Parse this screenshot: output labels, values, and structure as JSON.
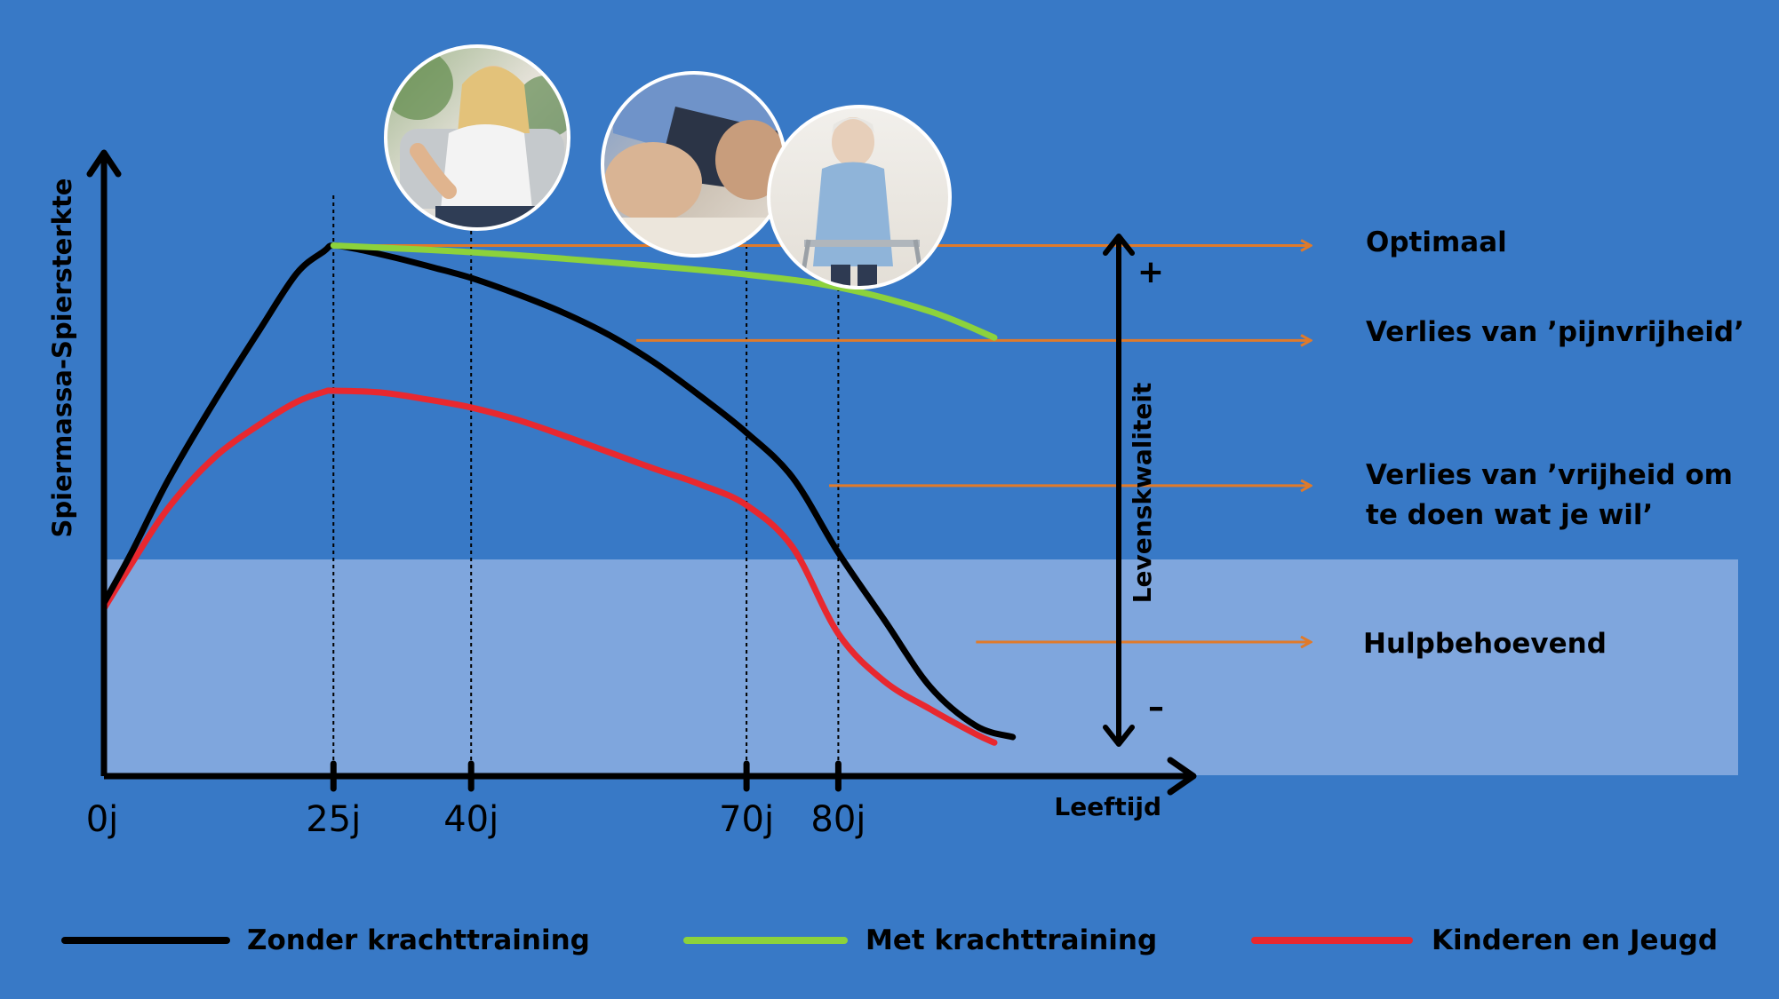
{
  "colors": {
    "background": "#3879c6",
    "dependency_band": "#7fa6dd",
    "axis": "#000000",
    "reference_arrow": "#e07a2a",
    "without_training": "#000000",
    "with_training": "#8cd23c",
    "children_youth": "#e8282f"
  },
  "chart_data": {
    "type": "line",
    "ylabel": "Spiermassa-Spiersterkte",
    "xlabel": "Leeftijd",
    "x_ticks": [
      0,
      25,
      40,
      70,
      80
    ],
    "x_tick_labels": [
      "0j",
      "25j",
      "40j",
      "70j",
      "80j"
    ],
    "xlim": [
      0,
      100
    ],
    "ylim": [
      0,
      100
    ],
    "grid": false,
    "legend_position": "bottom",
    "series": [
      {
        "name": "Zonder krachttraining",
        "color": "#000000",
        "x": [
          0,
          3,
          7,
          12,
          17,
          21,
          24,
          25,
          28,
          32,
          36,
          40,
          45,
          50,
          55,
          60,
          65,
          70,
          75,
          80,
          85,
          90,
          95,
          99
        ],
        "y": [
          31,
          40,
          53,
          67,
          80,
          90,
          94,
          95,
          94.2,
          92.7,
          91,
          89.2,
          86.3,
          83,
          79,
          74,
          68,
          61.5,
          53.5,
          40,
          28,
          16,
          9,
          7
        ]
      },
      {
        "name": "Met krachttraining",
        "color": "#8cd23c",
        "x": [
          25,
          40,
          55,
          70,
          80,
          90,
          97
        ],
        "y": [
          95,
          93.8,
          92,
          89.8,
          87.5,
          83.2,
          78.5
        ]
      },
      {
        "name": "Kinderen en Jeugd",
        "color": "#e8282f",
        "x": [
          0,
          3,
          7,
          12,
          17,
          21,
          24,
          25,
          30,
          35,
          40,
          45,
          50,
          55,
          60,
          65,
          70,
          75,
          80,
          85,
          90,
          95,
          97
        ],
        "y": [
          30,
          38,
          48,
          57,
          63,
          67,
          68.8,
          69,
          68.7,
          67.5,
          66,
          63.8,
          61,
          58,
          55,
          52.2,
          48.5,
          41,
          25.5,
          17,
          12,
          7.5,
          6
        ]
      }
    ],
    "reference_levels": [
      {
        "label": "Optimaal",
        "y": 95
      },
      {
        "label": "Verlies van ’pijnvrijheid’",
        "y": 78
      },
      {
        "label": "Verlies van ’vrijheid om te doen wat je wil’",
        "y": 52
      },
      {
        "label": "Hulpbehoevend",
        "y": 24
      }
    ],
    "quality_axis": {
      "label": "Levenskwaliteit",
      "plus": "+",
      "minus": "–"
    }
  },
  "labels": {
    "optimal": "Optimaal",
    "loss_pain_free": "Verlies van ’pijnvrijheid’",
    "loss_freedom_line1": "Verlies van ’vrijheid om",
    "loss_freedom_line2": "te doen wat je wil’",
    "care_dependent": "Hulpbehoevend"
  },
  "photos": [
    {
      "subject": "woman with back pain",
      "icon": "person-back-pain-photo"
    },
    {
      "subject": "man holding knee",
      "icon": "knee-pain-photo"
    },
    {
      "subject": "elderly woman with walker",
      "icon": "walker-photo"
    }
  ]
}
